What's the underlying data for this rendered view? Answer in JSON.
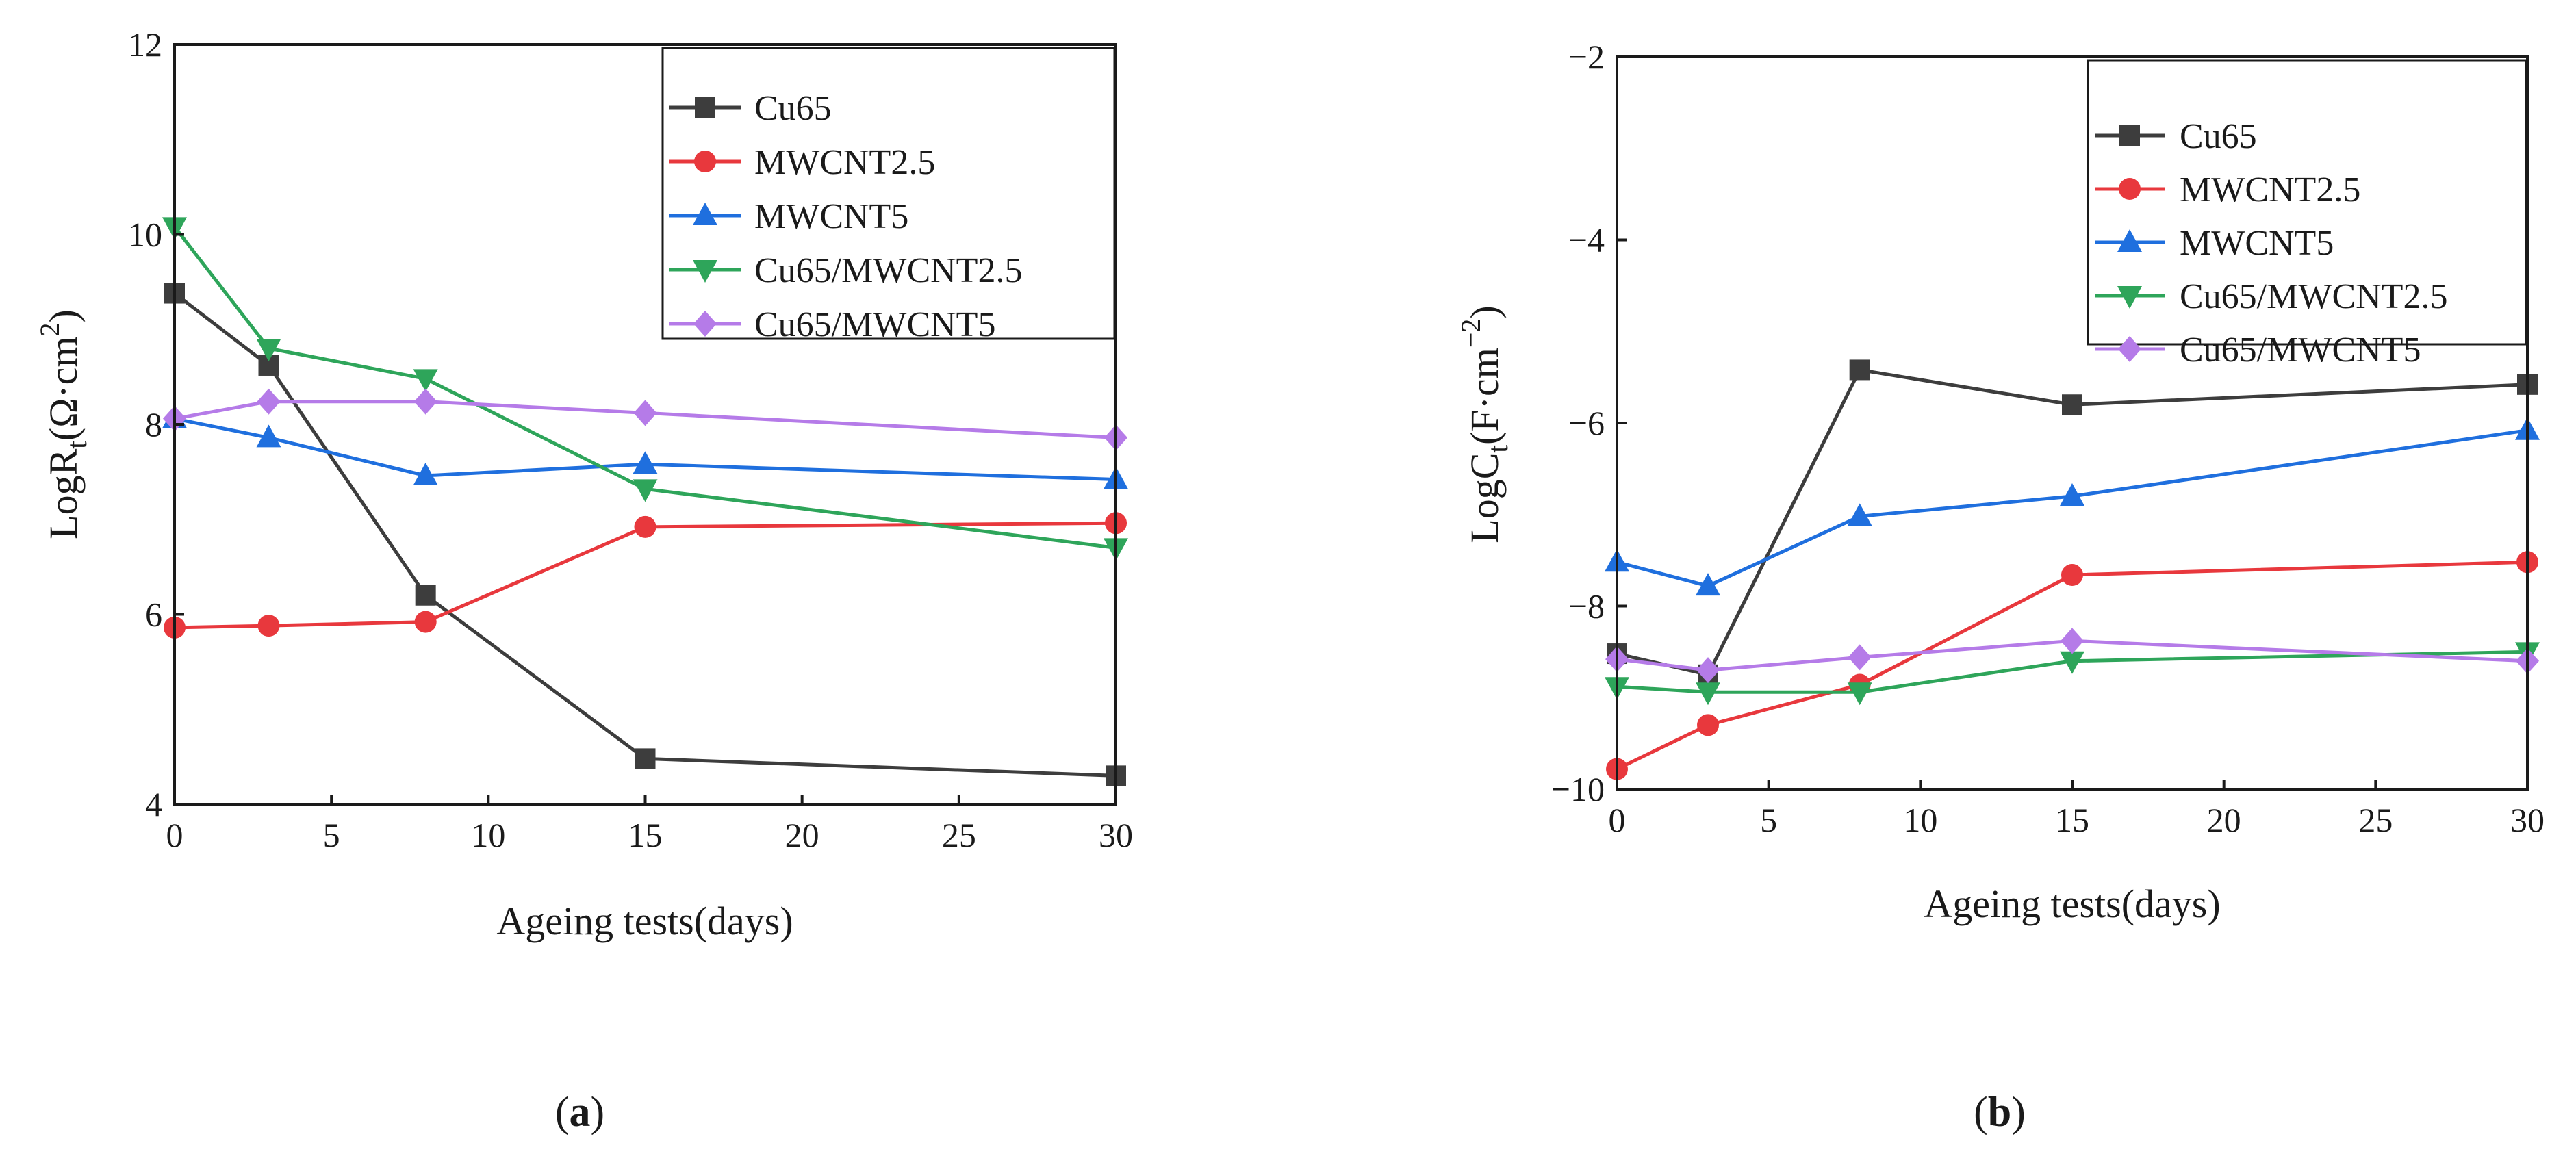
{
  "chart_data": [
    {
      "type": "line",
      "panel_label": "a",
      "xlabel": "Ageing tests(days)",
      "ylabel": {
        "base": "LogR",
        "sub": "t",
        "paren_open": "(Ω·cm",
        "sup": "2",
        "paren_close": ")"
      },
      "x": [
        0,
        3,
        8,
        15,
        30
      ],
      "xlim": [
        0,
        30
      ],
      "ylim": [
        4,
        12
      ],
      "xticks": [
        0,
        5,
        10,
        15,
        20,
        25,
        30
      ],
      "yticks": [
        4,
        6,
        8,
        10,
        12
      ],
      "legend_position": "top-right",
      "series": [
        {
          "name": "Cu65",
          "marker": "square",
          "color": "#3d3d3d",
          "values": [
            9.38,
            8.62,
            6.2,
            4.48,
            4.3
          ]
        },
        {
          "name": "MWCNT2.5",
          "marker": "circle",
          "color": "#e8383d",
          "values": [
            5.86,
            5.88,
            5.92,
            6.92,
            6.96
          ]
        },
        {
          "name": "MWCNT5",
          "marker": "triangle-up",
          "color": "#1f6fde",
          "values": [
            8.06,
            7.86,
            7.46,
            7.58,
            7.42
          ]
        },
        {
          "name": "Cu65/MWCNT2.5",
          "marker": "triangle-down",
          "color": "#2ea55a",
          "values": [
            10.08,
            8.8,
            8.48,
            7.32,
            6.7
          ]
        },
        {
          "name": "Cu65/MWCNT5",
          "marker": "diamond",
          "color": "#b57be8",
          "values": [
            8.06,
            8.24,
            8.24,
            8.12,
            7.86
          ]
        }
      ]
    },
    {
      "type": "line",
      "panel_label": "b",
      "xlabel": "Ageing tests(days)",
      "ylabel": {
        "base": "LogC",
        "sub": "t",
        "paren_open": "(F·cm",
        "sup": "−2",
        "paren_close": ")"
      },
      "x": [
        0,
        3,
        8,
        15,
        30
      ],
      "xlim": [
        0,
        30
      ],
      "ylim": [
        -10,
        -2
      ],
      "xticks": [
        0,
        5,
        10,
        15,
        20,
        25,
        30
      ],
      "yticks": [
        -10,
        -8,
        -6,
        -4,
        -2
      ],
      "ytick_labels": [
        "−10",
        "−8",
        "−6",
        "−4",
        "−2"
      ],
      "legend_position": "top-right",
      "series": [
        {
          "name": "Cu65",
          "marker": "square",
          "color": "#3d3d3d",
          "values": [
            -8.52,
            -8.75,
            -5.42,
            -5.8,
            -5.58
          ]
        },
        {
          "name": "MWCNT2.5",
          "marker": "circle",
          "color": "#e8383d",
          "values": [
            -9.78,
            -9.3,
            -8.86,
            -7.66,
            -7.52
          ]
        },
        {
          "name": "MWCNT5",
          "marker": "triangle-up",
          "color": "#1f6fde",
          "values": [
            -7.52,
            -7.78,
            -7.02,
            -6.8,
            -6.08
          ]
        },
        {
          "name": "Cu65/MWCNT2.5",
          "marker": "triangle-down",
          "color": "#2ea55a",
          "values": [
            -8.88,
            -8.94,
            -8.94,
            -8.6,
            -8.5
          ]
        },
        {
          "name": "Cu65/MWCNT5",
          "marker": "diamond",
          "color": "#b57be8",
          "values": [
            -8.58,
            -8.7,
            -8.56,
            -8.38,
            -8.6
          ]
        }
      ]
    }
  ]
}
